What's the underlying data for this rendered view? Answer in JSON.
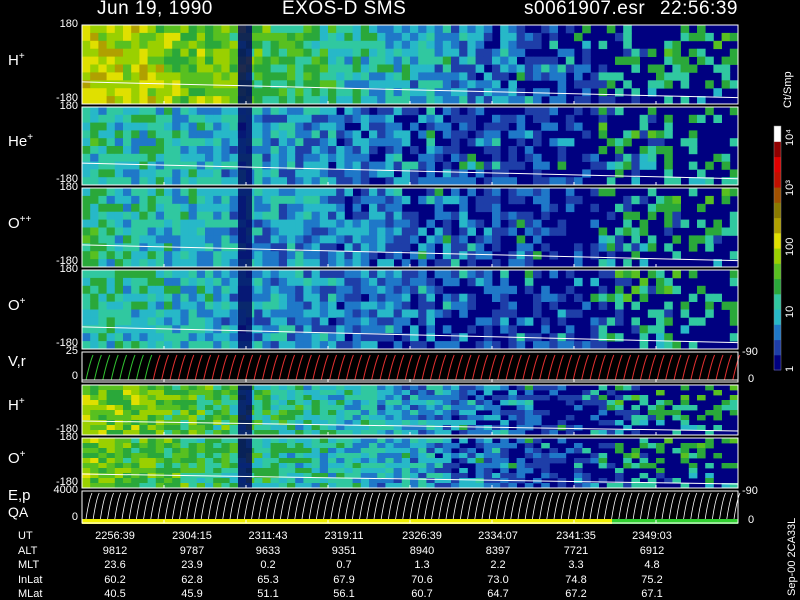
{
  "header": {
    "date": "Jun 19, 1990",
    "instrument": "EXOS-D SMS",
    "file": "s0061907.esr",
    "time": "22:56:39"
  },
  "panels": [
    {
      "id": "h-plus",
      "label": "H",
      "sup": "+",
      "ytop": "180",
      "ybot": "-180",
      "intensity": 0.9
    },
    {
      "id": "he-plus",
      "label": "He",
      "sup": "+",
      "ytop": "180",
      "ybot": "-180",
      "intensity": 0.45
    },
    {
      "id": "o-plus-plus",
      "label": "O",
      "sup": "++",
      "ytop": "180",
      "ybot": "-180",
      "intensity": 0.45
    },
    {
      "id": "o-plus",
      "label": "O",
      "sup": "+",
      "ytop": "180",
      "ybot": "-180",
      "intensity": 0.45
    },
    {
      "id": "vr",
      "label": "V,r",
      "sup": "",
      "ytop": "25",
      "ybot": "0",
      "right_top": "90",
      "right_bot": "0"
    },
    {
      "id": "h-plus-2",
      "label": "H",
      "sup": "+",
      "ytop": "",
      "ybot": "-180",
      "intensity": 0.75
    },
    {
      "id": "o-plus-2",
      "label": "O",
      "sup": "+",
      "ytop": "180",
      "ybot": "-180",
      "intensity": 0.7
    },
    {
      "id": "ep",
      "label": "E,p",
      "sup": "",
      "label2": "QA",
      "ytop": "4000",
      "ybot": "0",
      "right_top": "90",
      "right_bot": "0"
    }
  ],
  "colorbar": {
    "unit": "Ct/Smp",
    "ticks": [
      "1",
      "10",
      "100",
      "10³",
      "10⁴"
    ],
    "colors": [
      "#000080",
      "#1e3ea8",
      "#1f78c8",
      "#27b8c8",
      "#30c8a0",
      "#2aa83a",
      "#58c020",
      "#9ad000",
      "#e0e000",
      "#b0a000",
      "#8a7a00",
      "#a05000",
      "#c01000",
      "#e00000",
      "#900000",
      "#ffffff"
    ]
  },
  "orbit_table": {
    "rows": [
      {
        "label": "UT",
        "values": [
          "2256:39",
          "2304:15",
          "2311:43",
          "2319:11",
          "2326:39",
          "2334:07",
          "2341:35",
          "2349:03"
        ]
      },
      {
        "label": "ALT",
        "values": [
          "9812",
          "9787",
          "9633",
          "9351",
          "8940",
          "8397",
          "7721",
          "6912"
        ]
      },
      {
        "label": "MLT",
        "values": [
          "23.6",
          "23.9",
          "0.2",
          "0.7",
          "1.3",
          "2.2",
          "3.3",
          "4.8"
        ]
      },
      {
        "label": "InLat",
        "values": [
          "60.2",
          "62.8",
          "65.3",
          "67.9",
          "70.6",
          "73.0",
          "74.8",
          "75.2"
        ]
      },
      {
        "label": "MLat",
        "values": [
          "40.5",
          "45.9",
          "51.1",
          "56.1",
          "60.7",
          "64.7",
          "67.2",
          "67.1"
        ]
      }
    ]
  },
  "side_id": "Sep-00 2CA33L"
}
